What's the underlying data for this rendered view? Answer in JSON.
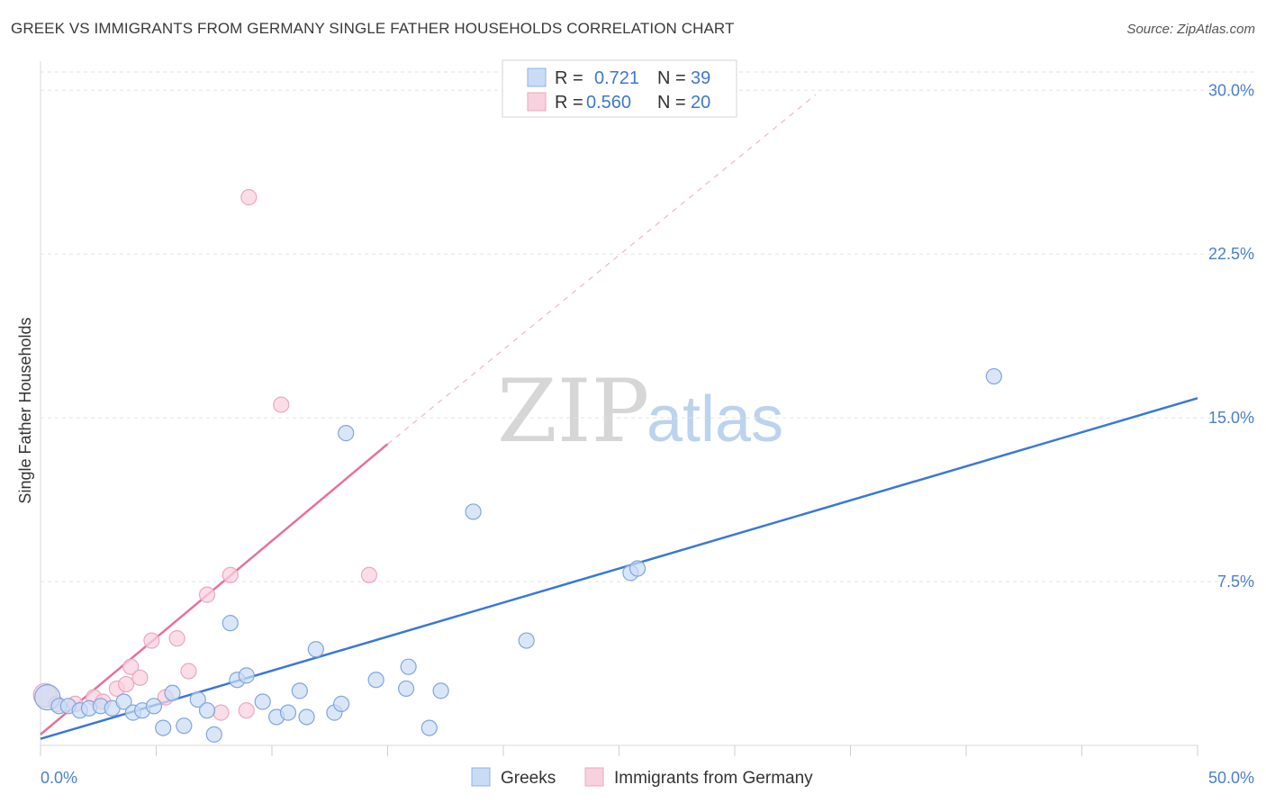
{
  "header": {
    "title": "GREEK VS IMMIGRANTS FROM GERMANY SINGLE FATHER HOUSEHOLDS CORRELATION CHART",
    "source": "Source: ZipAtlas.com"
  },
  "legend": {
    "r_label": "R =",
    "n_label": "N =",
    "rows": [
      {
        "r": "0.721",
        "n": "39"
      },
      {
        "r": "0.560",
        "n": "20"
      }
    ]
  },
  "watermark": {
    "zip": "ZIP",
    "atlas": "atlas"
  },
  "chart_data": {
    "type": "scatter",
    "title": "GREEK VS IMMIGRANTS FROM GERMANY SINGLE FATHER HOUSEHOLDS CORRELATION CHART",
    "xlabel": "",
    "ylabel": "Single Father Households",
    "xlim": [
      0,
      50
    ],
    "ylim": [
      0,
      31
    ],
    "x_tick_labels": [
      "0.0%",
      "50.0%"
    ],
    "y_ticks": [
      7.5,
      15.0,
      22.5,
      30.0
    ],
    "y_tick_labels": [
      "7.5%",
      "15.0%",
      "22.5%",
      "30.0%"
    ],
    "legend_position": "top-center",
    "colors": {
      "greeks": "#3a78d4",
      "germany": "#e8709a",
      "greeks_fill": "#c9dcf5",
      "germany_fill": "#f8d1de"
    },
    "series": [
      {
        "name": "Greeks",
        "r": 0.721,
        "n": 39,
        "points": [
          [
            0.3,
            2.2
          ],
          [
            0.8,
            1.8
          ],
          [
            1.2,
            1.8
          ],
          [
            1.7,
            1.6
          ],
          [
            2.1,
            1.7
          ],
          [
            2.6,
            1.8
          ],
          [
            3.1,
            1.7
          ],
          [
            3.6,
            2.0
          ],
          [
            4.0,
            1.5
          ],
          [
            4.4,
            1.6
          ],
          [
            4.9,
            1.8
          ],
          [
            5.3,
            0.8
          ],
          [
            5.7,
            2.4
          ],
          [
            6.2,
            0.9
          ],
          [
            6.8,
            2.1
          ],
          [
            7.2,
            1.6
          ],
          [
            7.5,
            0.5
          ],
          [
            8.2,
            5.6
          ],
          [
            8.5,
            3.0
          ],
          [
            8.9,
            3.2
          ],
          [
            9.6,
            2.0
          ],
          [
            10.2,
            1.3
          ],
          [
            10.7,
            1.5
          ],
          [
            11.2,
            2.5
          ],
          [
            11.5,
            1.3
          ],
          [
            11.9,
            4.4
          ],
          [
            12.7,
            1.5
          ],
          [
            13.0,
            1.9
          ],
          [
            13.2,
            14.3
          ],
          [
            14.5,
            3.0
          ],
          [
            15.8,
            2.6
          ],
          [
            15.9,
            3.6
          ],
          [
            16.8,
            0.8
          ],
          [
            17.3,
            2.5
          ],
          [
            18.7,
            10.7
          ],
          [
            21.0,
            4.8
          ],
          [
            25.5,
            7.9
          ],
          [
            25.8,
            8.1
          ],
          [
            41.2,
            16.9
          ]
        ],
        "trend": {
          "x": [
            0,
            50
          ],
          "y": [
            0.3,
            15.9
          ]
        }
      },
      {
        "name": "Immigrants from Germany",
        "r": 0.56,
        "n": 20,
        "points": [
          [
            0.2,
            2.3
          ],
          [
            0.7,
            1.9
          ],
          [
            1.5,
            1.9
          ],
          [
            2.3,
            2.2
          ],
          [
            2.7,
            2.0
          ],
          [
            3.3,
            2.6
          ],
          [
            3.7,
            2.8
          ],
          [
            3.9,
            3.6
          ],
          [
            4.3,
            3.1
          ],
          [
            4.8,
            4.8
          ],
          [
            5.4,
            2.2
          ],
          [
            5.9,
            4.9
          ],
          [
            6.4,
            3.4
          ],
          [
            7.2,
            6.9
          ],
          [
            7.8,
            1.5
          ],
          [
            8.2,
            7.8
          ],
          [
            8.9,
            1.6
          ],
          [
            9.0,
            25.1
          ],
          [
            10.4,
            15.6
          ],
          [
            14.2,
            7.8
          ]
        ],
        "trend": {
          "x": [
            0,
            15
          ],
          "y": [
            0.5,
            13.8
          ]
        },
        "trend_dashed": {
          "x": [
            15,
            33.5
          ],
          "y": [
            13.8,
            29.8
          ]
        }
      }
    ],
    "bottom_legend": [
      "Greeks",
      "Immigrants from Germany"
    ]
  }
}
